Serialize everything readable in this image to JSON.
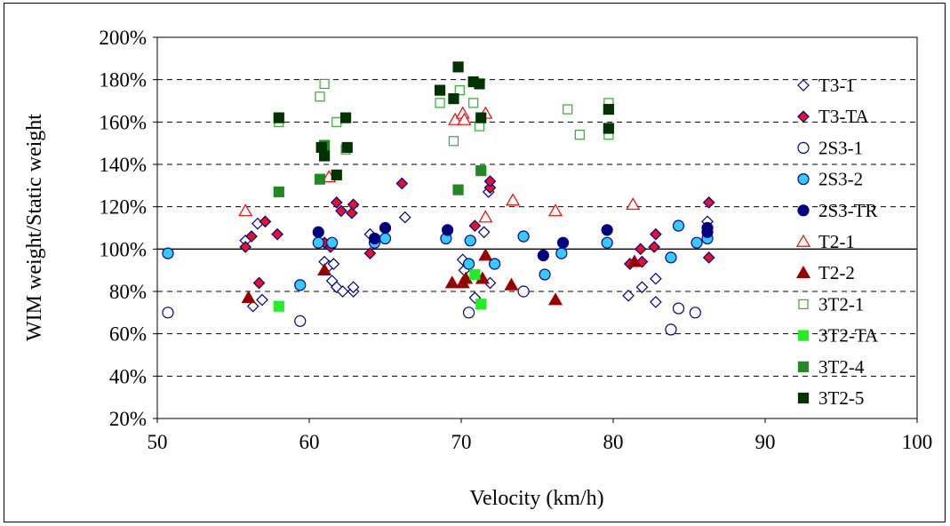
{
  "chart_data": {
    "type": "scatter",
    "xlabel": "Velocity (km/h)",
    "ylabel": "WIM weight/Static weight",
    "xlim": [
      50,
      100
    ],
    "ylim": [
      20,
      200
    ],
    "x_ticks": [
      "50",
      "60",
      "70",
      "80",
      "90",
      "100"
    ],
    "y_ticks": [
      "20%",
      "40%",
      "60%",
      "80%",
      "100%",
      "120%",
      "140%",
      "160%",
      "180%",
      "200%"
    ],
    "grid": "horizontal dashed",
    "reference_line": 100,
    "legend_position": "right",
    "series": [
      {
        "name": "T3-1",
        "marker": "diamond-open",
        "color": "#000080",
        "points": [
          [
            55.8,
            104
          ],
          [
            56.3,
            73
          ],
          [
            56.9,
            76
          ],
          [
            56.6,
            112
          ],
          [
            61.0,
            94
          ],
          [
            61.3,
            92
          ],
          [
            61.6,
            93
          ],
          [
            61.5,
            85
          ],
          [
            61.8,
            82
          ],
          [
            62.2,
            80
          ],
          [
            62.9,
            80
          ],
          [
            62.9,
            82
          ],
          [
            64.0,
            107
          ],
          [
            66.3,
            115
          ],
          [
            70.1,
            95
          ],
          [
            70.2,
            90
          ],
          [
            70.9,
            77
          ],
          [
            71.5,
            108
          ],
          [
            71.9,
            84
          ],
          [
            71.8,
            127
          ],
          [
            81.0,
            78
          ],
          [
            81.9,
            82
          ],
          [
            82.8,
            75
          ],
          [
            82.8,
            86
          ],
          [
            86.2,
            113
          ]
        ]
      },
      {
        "name": "T3-TA",
        "marker": "diamond-filled",
        "color": "#e8102e",
        "points": [
          [
            55.8,
            101
          ],
          [
            56.2,
            106
          ],
          [
            56.7,
            84
          ],
          [
            57.1,
            113
          ],
          [
            57.9,
            107
          ],
          [
            61.0,
            103
          ],
          [
            61.4,
            101
          ],
          [
            61.8,
            122
          ],
          [
            62.1,
            118
          ],
          [
            62.8,
            117
          ],
          [
            62.9,
            121
          ],
          [
            64.0,
            98
          ],
          [
            66.1,
            131
          ],
          [
            70.9,
            111
          ],
          [
            71.9,
            129
          ],
          [
            71.9,
            132
          ],
          [
            81.1,
            93
          ],
          [
            81.8,
            100
          ],
          [
            81.9,
            94
          ],
          [
            82.7,
            101
          ],
          [
            82.8,
            107
          ],
          [
            86.3,
            122
          ],
          [
            86.3,
            96
          ]
        ]
      },
      {
        "name": "2S3-1",
        "marker": "circle-open",
        "color": "#000080",
        "points": [
          [
            50.7,
            70
          ],
          [
            59.4,
            66
          ],
          [
            70.5,
            70
          ],
          [
            74.1,
            80
          ],
          [
            83.8,
            62
          ],
          [
            84.3,
            72
          ],
          [
            85.4,
            70
          ]
        ]
      },
      {
        "name": "2S3-2",
        "marker": "circle-filled",
        "color": "#33ccff",
        "points": [
          [
            50.7,
            98
          ],
          [
            59.4,
            83
          ],
          [
            60.6,
            103
          ],
          [
            61.5,
            103
          ],
          [
            64.3,
            103
          ],
          [
            65.0,
            105
          ],
          [
            69.0,
            105
          ],
          [
            70.5,
            93
          ],
          [
            70.6,
            104
          ],
          [
            72.2,
            93
          ],
          [
            74.1,
            106
          ],
          [
            75.5,
            88
          ],
          [
            76.6,
            98
          ],
          [
            79.6,
            103
          ],
          [
            83.8,
            96
          ],
          [
            84.3,
            111
          ],
          [
            85.5,
            103
          ],
          [
            86.2,
            105
          ]
        ]
      },
      {
        "name": "2S3-TR",
        "marker": "circle-filled",
        "color": "#000080",
        "points": [
          [
            60.6,
            108
          ],
          [
            64.3,
            105
          ],
          [
            65.0,
            110
          ],
          [
            69.1,
            109
          ],
          [
            75.4,
            97
          ],
          [
            76.7,
            103
          ],
          [
            79.6,
            109
          ],
          [
            86.2,
            110
          ],
          [
            86.2,
            108
          ]
        ]
      },
      {
        "name": "T2-1",
        "marker": "triangle-open",
        "color": "#ff0000",
        "points": [
          [
            55.8,
            118
          ],
          [
            61.3,
            134
          ],
          [
            69.6,
            161
          ],
          [
            70.1,
            164
          ],
          [
            70.2,
            161
          ],
          [
            71.6,
            164
          ],
          [
            71.6,
            115
          ],
          [
            73.4,
            123
          ],
          [
            76.2,
            118
          ],
          [
            81.3,
            121
          ]
        ]
      },
      {
        "name": "T2-2",
        "marker": "triangle-filled",
        "color": "#990000",
        "points": [
          [
            56.0,
            77
          ],
          [
            61.0,
            90
          ],
          [
            69.4,
            84
          ],
          [
            70.1,
            84
          ],
          [
            70.3,
            86
          ],
          [
            71.4,
            86
          ],
          [
            71.6,
            97
          ],
          [
            73.3,
            83
          ],
          [
            76.2,
            76
          ],
          [
            81.4,
            94
          ]
        ]
      },
      {
        "name": "3T2-1",
        "marker": "square-open",
        "color": "#33aa33",
        "points": [
          [
            58.0,
            160
          ],
          [
            60.7,
            172
          ],
          [
            61.0,
            178
          ],
          [
            61.8,
            160
          ],
          [
            62.4,
            147
          ],
          [
            68.6,
            169
          ],
          [
            69.5,
            151
          ],
          [
            69.9,
            175
          ],
          [
            70.8,
            169
          ],
          [
            71.2,
            158
          ],
          [
            77.0,
            166
          ],
          [
            77.8,
            154
          ],
          [
            79.7,
            169
          ],
          [
            79.7,
            154
          ]
        ]
      },
      {
        "name": "3T2-TA",
        "marker": "square-filled",
        "color": "#22ee22",
        "points": [
          [
            58.0,
            73
          ],
          [
            70.9,
            88
          ],
          [
            71.3,
            74
          ]
        ]
      },
      {
        "name": "3T2-4",
        "marker": "square-filled",
        "color": "#228822",
        "points": [
          [
            58.0,
            127
          ],
          [
            60.7,
            133
          ],
          [
            61.0,
            149
          ],
          [
            69.8,
            128
          ],
          [
            71.3,
            137
          ]
        ]
      },
      {
        "name": "3T2-5",
        "marker": "square-filled",
        "color": "#003300",
        "points": [
          [
            58.0,
            162
          ],
          [
            60.8,
            148
          ],
          [
            61.0,
            144
          ],
          [
            61.8,
            135
          ],
          [
            62.4,
            162
          ],
          [
            62.5,
            148
          ],
          [
            68.6,
            175
          ],
          [
            69.5,
            171
          ],
          [
            69.8,
            186
          ],
          [
            70.8,
            179
          ],
          [
            71.2,
            178
          ],
          [
            71.3,
            162
          ],
          [
            79.7,
            166
          ],
          [
            79.7,
            157
          ]
        ]
      }
    ]
  }
}
